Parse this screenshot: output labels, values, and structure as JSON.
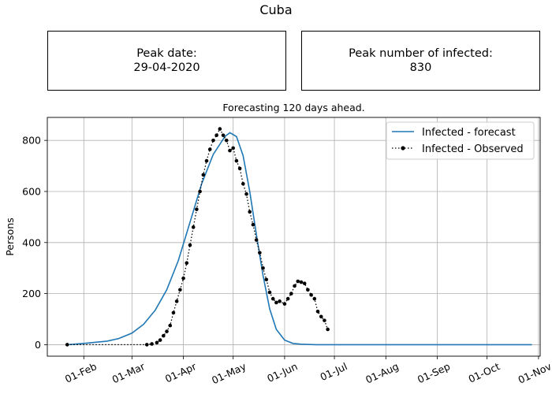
{
  "figure": {
    "title": "Cuba",
    "peak_date_label": "Peak date:",
    "peak_date_value": "29-04-2020",
    "peak_infected_label": "Peak number of infected:",
    "peak_infected_value": "830"
  },
  "colors": {
    "forecast": "#1f77b4",
    "observed": "#000000",
    "grid": "#b0b0b0"
  },
  "chart_data": {
    "type": "line",
    "title": "Forecasting 120 days ahead.",
    "xlabel": "",
    "ylabel": "Persons",
    "x_axis": "date",
    "xlim": [
      "2020-01-10",
      "2020-11-02"
    ],
    "ylim": [
      -45,
      890
    ],
    "grid": true,
    "legend_position": "top-right",
    "xticks": [
      "2020-02-01",
      "2020-03-01",
      "2020-04-01",
      "2020-05-01",
      "2020-06-01",
      "2020-07-01",
      "2020-08-01",
      "2020-09-01",
      "2020-10-01",
      "2020-11-01"
    ],
    "xtick_labels": [
      "01-Feb",
      "01-Mar",
      "01-Apr",
      "01-May",
      "01-Jun",
      "01-Jul",
      "01-Aug",
      "01-Sep",
      "01-Oct",
      "01-Nov"
    ],
    "yticks": [
      0,
      200,
      400,
      600,
      800
    ],
    "series": [
      {
        "name": "Infected - forecast",
        "style": "line",
        "points": [
          [
            "2020-01-22",
            0
          ],
          [
            "2020-02-01",
            5
          ],
          [
            "2020-02-15",
            14
          ],
          [
            "2020-02-22",
            24
          ],
          [
            "2020-03-01",
            45
          ],
          [
            "2020-03-08",
            80
          ],
          [
            "2020-03-15",
            135
          ],
          [
            "2020-03-22",
            215
          ],
          [
            "2020-03-29",
            330
          ],
          [
            "2020-04-05",
            480
          ],
          [
            "2020-04-12",
            630
          ],
          [
            "2020-04-19",
            745
          ],
          [
            "2020-04-26",
            815
          ],
          [
            "2020-04-29",
            830
          ],
          [
            "2020-05-03",
            815
          ],
          [
            "2020-05-07",
            740
          ],
          [
            "2020-05-11",
            600
          ],
          [
            "2020-05-15",
            430
          ],
          [
            "2020-05-19",
            270
          ],
          [
            "2020-05-23",
            140
          ],
          [
            "2020-05-27",
            60
          ],
          [
            "2020-06-01",
            18
          ],
          [
            "2020-06-06",
            5
          ],
          [
            "2020-06-11",
            2
          ],
          [
            "2020-06-20",
            0
          ],
          [
            "2020-07-15",
            0
          ],
          [
            "2020-09-01",
            0
          ],
          [
            "2020-10-28",
            0
          ]
        ]
      },
      {
        "name": "Infected - Observed",
        "style": "dotted-markers",
        "points": [
          [
            "2020-01-22",
            0
          ],
          [
            "2020-03-10",
            0
          ],
          [
            "2020-03-13",
            3
          ],
          [
            "2020-03-16",
            8
          ],
          [
            "2020-03-18",
            18
          ],
          [
            "2020-03-20",
            35
          ],
          [
            "2020-03-22",
            52
          ],
          [
            "2020-03-24",
            75
          ],
          [
            "2020-03-26",
            125
          ],
          [
            "2020-03-28",
            170
          ],
          [
            "2020-03-30",
            215
          ],
          [
            "2020-04-01",
            260
          ],
          [
            "2020-04-03",
            320
          ],
          [
            "2020-04-05",
            390
          ],
          [
            "2020-04-07",
            460
          ],
          [
            "2020-04-09",
            530
          ],
          [
            "2020-04-11",
            600
          ],
          [
            "2020-04-13",
            665
          ],
          [
            "2020-04-15",
            720
          ],
          [
            "2020-04-17",
            765
          ],
          [
            "2020-04-19",
            800
          ],
          [
            "2020-04-21",
            820
          ],
          [
            "2020-04-23",
            845
          ],
          [
            "2020-04-25",
            820
          ],
          [
            "2020-04-27",
            800
          ],
          [
            "2020-04-29",
            760
          ],
          [
            "2020-05-01",
            770
          ],
          [
            "2020-05-03",
            720
          ],
          [
            "2020-05-05",
            690
          ],
          [
            "2020-05-07",
            630
          ],
          [
            "2020-05-09",
            590
          ],
          [
            "2020-05-11",
            520
          ],
          [
            "2020-05-13",
            470
          ],
          [
            "2020-05-15",
            410
          ],
          [
            "2020-05-17",
            360
          ],
          [
            "2020-05-19",
            300
          ],
          [
            "2020-05-21",
            255
          ],
          [
            "2020-05-23",
            205
          ],
          [
            "2020-05-25",
            180
          ],
          [
            "2020-05-27",
            165
          ],
          [
            "2020-05-29",
            170
          ],
          [
            "2020-06-01",
            160
          ],
          [
            "2020-06-03",
            180
          ],
          [
            "2020-06-05",
            200
          ],
          [
            "2020-06-07",
            230
          ],
          [
            "2020-06-09",
            248
          ],
          [
            "2020-06-11",
            245
          ],
          [
            "2020-06-13",
            240
          ],
          [
            "2020-06-15",
            215
          ],
          [
            "2020-06-17",
            195
          ],
          [
            "2020-06-19",
            180
          ],
          [
            "2020-06-21",
            130
          ],
          [
            "2020-06-23",
            110
          ],
          [
            "2020-06-25",
            95
          ],
          [
            "2020-06-27",
            60
          ]
        ]
      }
    ]
  }
}
